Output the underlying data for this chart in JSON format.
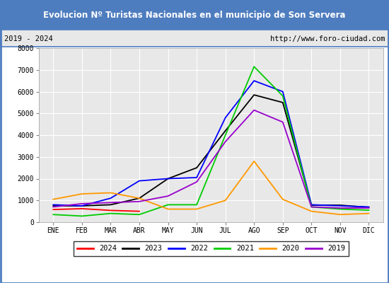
{
  "title": "Evolucion Nº Turistas Nacionales en el municipio de Son Servera",
  "subtitle_left": "2019 - 2024",
  "subtitle_right": "http://www.foro-ciudad.com",
  "title_bg": "#4e7dbf",
  "title_color": "white",
  "xlabel_months": [
    "ENE",
    "FEB",
    "MAR",
    "ABR",
    "MAY",
    "JUN",
    "JUL",
    "AGO",
    "SEP",
    "OCT",
    "NOV",
    "DIC"
  ],
  "ylim": [
    0,
    8000
  ],
  "yticks": [
    0,
    1000,
    2000,
    3000,
    4000,
    5000,
    6000,
    7000,
    8000
  ],
  "series": {
    "2024": {
      "color": "#ff0000",
      "data": [
        580,
        620,
        540,
        500,
        null,
        null,
        null,
        null,
        null,
        null,
        null,
        null
      ]
    },
    "2023": {
      "color": "#000000",
      "data": [
        750,
        750,
        800,
        1100,
        2000,
        2500,
        4200,
        5850,
        5500,
        780,
        780,
        680
      ]
    },
    "2022": {
      "color": "#0000ff",
      "data": [
        800,
        750,
        1100,
        1900,
        2000,
        2050,
        4800,
        6500,
        6000,
        800,
        750,
        700
      ]
    },
    "2021": {
      "color": "#00cc00",
      "data": [
        350,
        280,
        400,
        350,
        800,
        800,
        4000,
        7150,
        5800,
        700,
        600,
        550
      ]
    },
    "2020": {
      "color": "#ff9900",
      "data": [
        1050,
        1300,
        1350,
        1100,
        600,
        600,
        1000,
        2800,
        1050,
        500,
        350,
        400
      ]
    },
    "2019": {
      "color": "#9900cc",
      "data": [
        700,
        850,
        900,
        950,
        1200,
        1850,
        3700,
        5150,
        4600,
        700,
        650,
        650
      ]
    }
  },
  "legend_order": [
    "2024",
    "2023",
    "2022",
    "2021",
    "2020",
    "2019"
  ],
  "plot_bg": "#e8e8e8",
  "grid_color": "#ffffff",
  "border_color": "#4e7dbf",
  "outer_border_color": "#4e7dbf"
}
